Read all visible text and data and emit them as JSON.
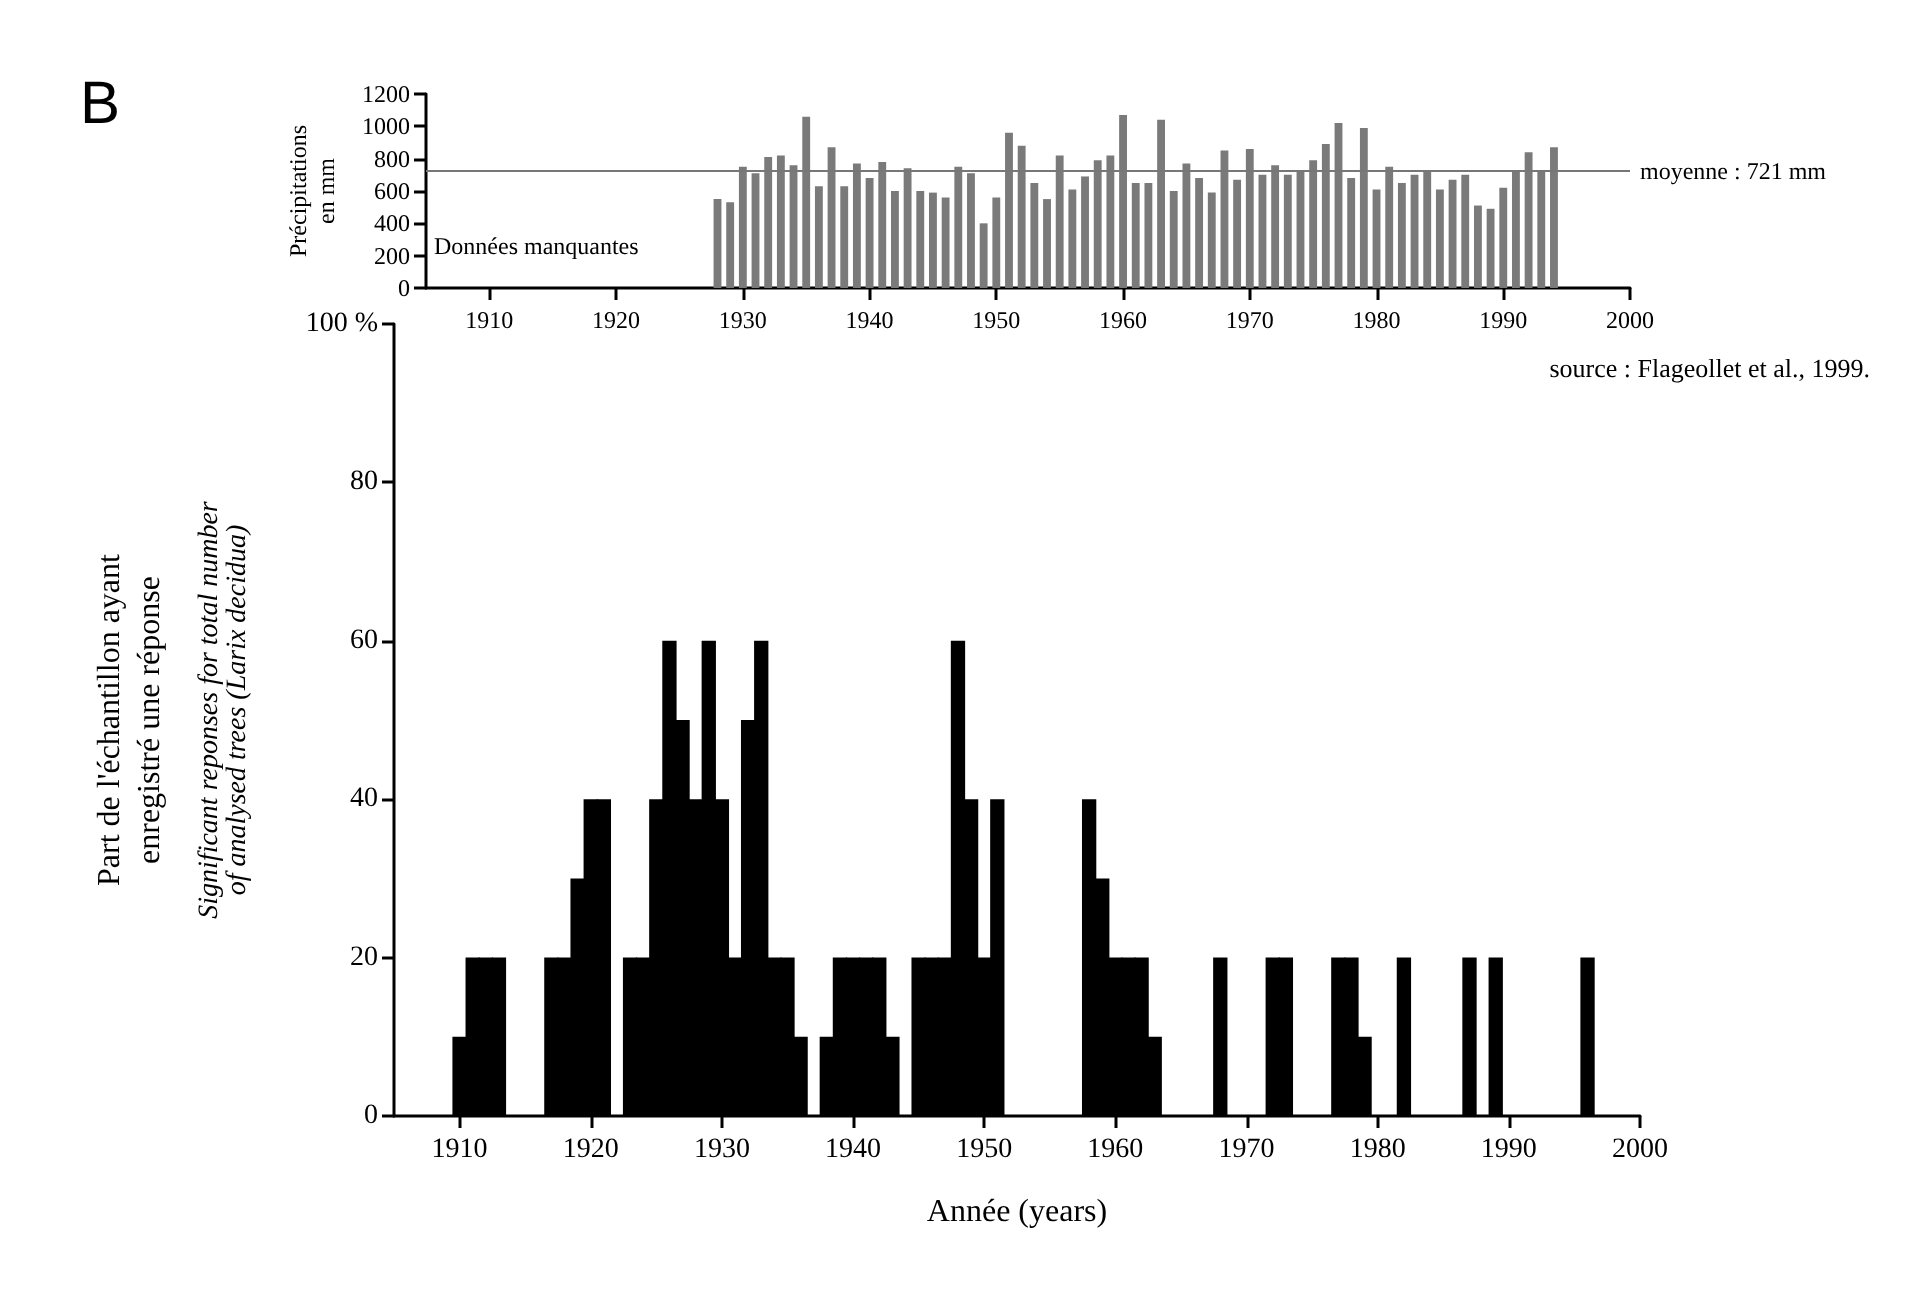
{
  "chart_data": [
    {
      "type": "bar",
      "ylabel": "Précipitations\nen mm",
      "color": "#7a7a7a",
      "x": [
        1928,
        1929,
        1930,
        1931,
        1932,
        1933,
        1934,
        1935,
        1936,
        1937,
        1938,
        1939,
        1940,
        1941,
        1942,
        1943,
        1944,
        1945,
        1946,
        1947,
        1948,
        1949,
        1950,
        1951,
        1952,
        1953,
        1954,
        1955,
        1956,
        1957,
        1958,
        1959,
        1960,
        1961,
        1962,
        1963,
        1964,
        1965,
        1966,
        1967,
        1968,
        1969,
        1970,
        1971,
        1972,
        1973,
        1974,
        1975,
        1976,
        1977,
        1978,
        1979,
        1980,
        1981,
        1982,
        1983,
        1984,
        1985,
        1986,
        1987,
        1988,
        1989,
        1990,
        1991,
        1992,
        1993,
        1994
      ],
      "values": [
        550,
        530,
        750,
        710,
        810,
        820,
        760,
        1060,
        630,
        870,
        630,
        770,
        680,
        780,
        600,
        740,
        600,
        590,
        560,
        750,
        710,
        400,
        560,
        960,
        880,
        650,
        550,
        820,
        610,
        690,
        790,
        820,
        1070,
        650,
        650,
        1040,
        600,
        770,
        680,
        590,
        850,
        670,
        860,
        700,
        760,
        700,
        720,
        790,
        890,
        1020,
        680,
        990,
        610,
        750,
        650,
        700,
        720,
        610,
        670,
        700,
        510,
        490,
        620,
        730,
        840,
        730,
        870
      ],
      "xlim": [
        1905,
        2000
      ],
      "xticks": [
        1910,
        1920,
        1930,
        1940,
        1950,
        1960,
        1970,
        1980,
        1990,
        2000
      ],
      "ylim": [
        0,
        1200
      ],
      "yticks": [
        0,
        200,
        400,
        600,
        800,
        1000,
        1200
      ],
      "ref_lines": [
        {
          "axis": "y",
          "value": 721,
          "label": "moyenne : 721 mm",
          "color": "#777777"
        }
      ],
      "annotations": [
        "B",
        "Données manquantes",
        "source : Flageollet et al., 1999."
      ]
    },
    {
      "type": "bar",
      "ylabel": "Part de l'échantillon ayant\nenregistré une réponse",
      "xlabel": "Année (years)",
      "color": "#000000",
      "x": [
        1910,
        1911,
        1912,
        1913,
        1917,
        1918,
        1919,
        1920,
        1921,
        1923,
        1924,
        1925,
        1926,
        1927,
        1928,
        1929,
        1930,
        1931,
        1932,
        1933,
        1934,
        1935,
        1936,
        1938,
        1939,
        1940,
        1941,
        1942,
        1943,
        1945,
        1946,
        1947,
        1948,
        1949,
        1950,
        1951,
        1958,
        1959,
        1960,
        1961,
        1962,
        1963,
        1968,
        1972,
        1973,
        1977,
        1978,
        1979,
        1982,
        1987,
        1989,
        1996
      ],
      "values": [
        10,
        20,
        20,
        20,
        20,
        20,
        30,
        40,
        40,
        20,
        20,
        40,
        60,
        50,
        40,
        60,
        40,
        20,
        50,
        60,
        20,
        20,
        10,
        10,
        20,
        20,
        20,
        20,
        10,
        20,
        20,
        20,
        60,
        40,
        20,
        40,
        40,
        30,
        20,
        20,
        20,
        10,
        20,
        20,
        20,
        20,
        20,
        10,
        20,
        20,
        20,
        20
      ],
      "xlim": [
        1905,
        2000
      ],
      "xticks": [
        1910,
        1920,
        1930,
        1940,
        1950,
        1960,
        1970,
        1980,
        1990,
        2000
      ],
      "ylim": [
        0,
        100
      ],
      "yticks": [
        0,
        20,
        40,
        60,
        80,
        {
          "value": 100,
          "label": "100 %"
        }
      ],
      "annotations": [
        "Significant reponses for total number\nof analysed trees (Larix decidua)"
      ]
    }
  ]
}
